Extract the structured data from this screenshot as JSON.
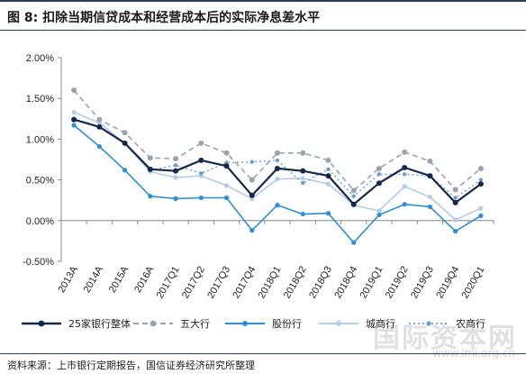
{
  "figure": {
    "title": "图 8:  扣除当期信贷成本和经营成本后的实际净息差水平",
    "source": "资料来源：上市银行定期报告，国信证券经济研究所整理",
    "watermark": "国际资本网",
    "watermark_url": "www.imi.org.cn"
  },
  "colors": {
    "series_overall": "#14284b",
    "series_big5": "#9aa3ae",
    "series_joint": "#2f8fd5",
    "series_city": "#b3cde8",
    "series_rural": "#6e9dd0",
    "axis": "#888888",
    "frame": "#2c3e60"
  },
  "chart_data": {
    "type": "line",
    "title": "",
    "xlabel": "",
    "ylabel": "",
    "ylim": [
      -0.5,
      2.0
    ],
    "yticks": [
      -0.5,
      0.0,
      0.5,
      1.0,
      1.5,
      2.0
    ],
    "ytick_labels": [
      "-0.50%",
      "0.00%",
      "0.50%",
      "1.00%",
      "1.50%",
      "2.00%"
    ],
    "grid": false,
    "legend": "bottom",
    "categories": [
      "2013A",
      "2014A",
      "2015A",
      "2016A",
      "2017Q1",
      "2017Q2",
      "2017Q3",
      "2017Q4",
      "2018Q1",
      "2018Q2",
      "2018Q3",
      "2018Q4",
      "2019Q1",
      "2019Q2",
      "2019Q3",
      "2019Q4",
      "2020Q1"
    ],
    "series": [
      {
        "name": "25家银行整体",
        "style": "solid",
        "values": [
          1.24,
          1.15,
          0.95,
          0.63,
          0.61,
          0.74,
          0.67,
          0.31,
          0.64,
          0.61,
          0.55,
          0.2,
          0.46,
          0.65,
          0.55,
          0.22,
          0.45
        ]
      },
      {
        "name": "五大行",
        "style": "dashed",
        "values": [
          1.6,
          1.24,
          1.08,
          0.77,
          0.76,
          0.95,
          0.83,
          0.5,
          0.83,
          0.83,
          0.74,
          0.37,
          0.64,
          0.84,
          0.73,
          0.38,
          0.64
        ]
      },
      {
        "name": "股份行",
        "style": "solid",
        "values": [
          1.17,
          0.91,
          0.62,
          0.3,
          0.27,
          0.28,
          0.28,
          -0.12,
          0.19,
          0.08,
          0.09,
          -0.27,
          0.07,
          0.2,
          0.17,
          -0.13,
          0.06
        ]
      },
      {
        "name": "城商行",
        "style": "solid",
        "values": [
          1.33,
          1.2,
          0.95,
          0.6,
          0.53,
          0.55,
          0.43,
          0.27,
          0.51,
          0.52,
          0.45,
          0.19,
          0.12,
          0.42,
          0.29,
          0.01,
          0.15
        ]
      },
      {
        "name": "农商行",
        "style": "dashed",
        "values": [
          1.25,
          1.15,
          0.95,
          0.62,
          0.68,
          0.58,
          0.71,
          0.72,
          0.74,
          0.46,
          0.63,
          0.3,
          0.57,
          0.57,
          0.55,
          0.28,
          0.5
        ]
      }
    ]
  }
}
